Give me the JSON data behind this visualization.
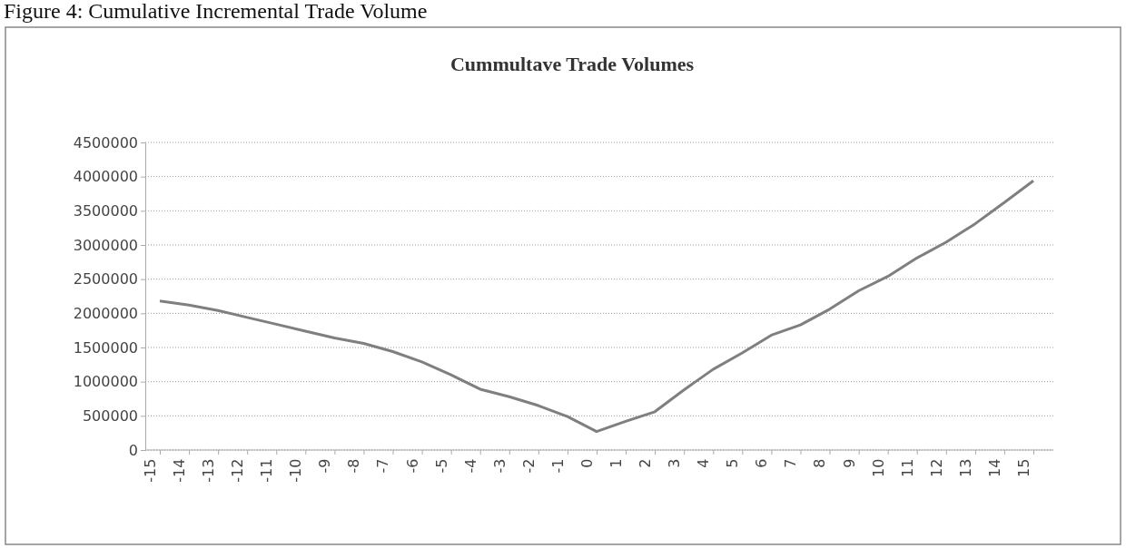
{
  "chart_data": {
    "type": "line",
    "title": "Cummultave Trade Volumes",
    "annotations": [
      "Figure 4: Cumulative Incremental Trade Volume"
    ],
    "categories": [
      "-15",
      "-14",
      "-13",
      "-12",
      "-11",
      "-10",
      "-9",
      "-8",
      "-7",
      "-6",
      "-5",
      "-4",
      "-3",
      "-2",
      "-1",
      "0",
      "1",
      "2",
      "3",
      "4",
      "5",
      "6",
      "7",
      "8",
      "9",
      "10",
      "11",
      "12",
      "13",
      "14",
      "15"
    ],
    "series": [
      {
        "color": "#7f7f7f",
        "values": [
          2180000,
          2120000,
          2040000,
          1940000,
          1840000,
          1740000,
          1640000,
          1560000,
          1440000,
          1290000,
          1100000,
          890000,
          780000,
          650000,
          490000,
          270000,
          420000,
          560000,
          880000,
          1180000,
          1420000,
          1680000,
          1830000,
          2060000,
          2330000,
          2540000,
          2810000,
          3040000,
          3310000,
          3620000,
          3940000
        ]
      }
    ],
    "ylim": [
      0,
      4500000
    ],
    "yticks": [
      0,
      500000,
      1000000,
      1500000,
      2000000,
      2500000,
      3000000,
      3500000,
      4000000,
      4500000
    ],
    "grid": "y",
    "marker": "none",
    "line_style": "solid"
  }
}
